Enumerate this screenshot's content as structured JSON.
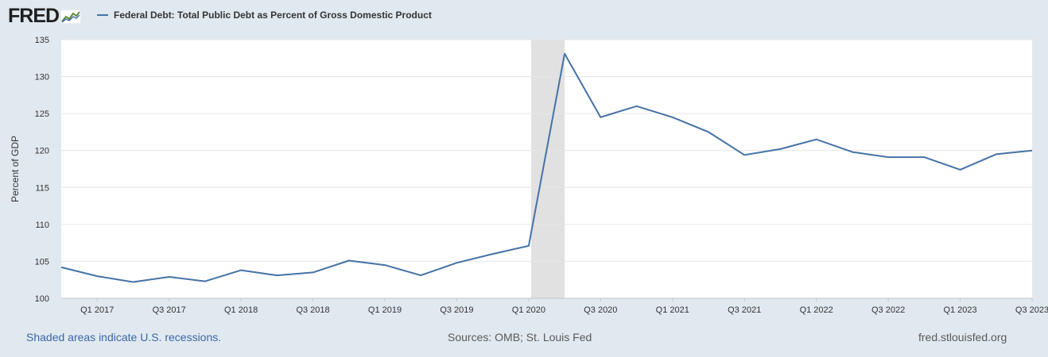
{
  "header": {
    "logo_text": "FRED",
    "legend_label": "Federal Debt: Total Public Debt as Percent of Gross Domestic Product"
  },
  "footer": {
    "recession_note": "Shaded areas indicate U.S. recessions.",
    "sources": "Sources: OMB; St. Louis Fed",
    "site": "fred.stlouisfed.org"
  },
  "colors": {
    "series": "#4572a7",
    "recession": "#e1e1e1",
    "background": "#e1e9f0",
    "plot": "#ffffff"
  },
  "chart_data": {
    "type": "line",
    "title": "",
    "xlabel": "",
    "ylabel": "Percent of GDP",
    "ylim": [
      100,
      135
    ],
    "y_ticks": [
      100,
      105,
      110,
      115,
      120,
      125,
      130,
      135
    ],
    "x_tick_labels": [
      "Q1 2017",
      "Q3 2017",
      "Q1 2018",
      "Q3 2018",
      "Q1 2019",
      "Q3 2019",
      "Q1 2020",
      "Q3 2020",
      "Q1 2021",
      "Q3 2021",
      "Q1 2022",
      "Q3 2022",
      "Q1 2023",
      "Q3 2023"
    ],
    "x_tick_positions": [
      1,
      3,
      5,
      7,
      9,
      11,
      13,
      15,
      17,
      19,
      21,
      23,
      25,
      27
    ],
    "recessions": [
      {
        "start": "Q1 2020",
        "end": "Q2 2020"
      }
    ],
    "series": [
      {
        "name": "Federal Debt: Total Public Debt as Percent of Gross Domestic Product",
        "x": [
          "Q4 2016",
          "Q1 2017",
          "Q2 2017",
          "Q3 2017",
          "Q4 2017",
          "Q1 2018",
          "Q2 2018",
          "Q3 2018",
          "Q4 2018",
          "Q1 2019",
          "Q2 2019",
          "Q3 2019",
          "Q4 2019",
          "Q1 2020",
          "Q2 2020",
          "Q3 2020",
          "Q4 2020",
          "Q1 2021",
          "Q2 2021",
          "Q3 2021",
          "Q4 2021",
          "Q1 2022",
          "Q2 2022",
          "Q3 2022",
          "Q4 2022",
          "Q1 2023",
          "Q2 2023",
          "Q3 2023"
        ],
        "values": [
          104.2,
          103.0,
          102.2,
          102.9,
          102.3,
          103.8,
          103.1,
          103.5,
          105.1,
          104.5,
          103.1,
          104.8,
          106.0,
          107.1,
          133.1,
          124.5,
          126.0,
          124.5,
          122.5,
          119.4,
          120.2,
          121.5,
          119.8,
          119.1,
          119.1,
          117.4,
          119.5,
          120.0
        ]
      }
    ]
  }
}
